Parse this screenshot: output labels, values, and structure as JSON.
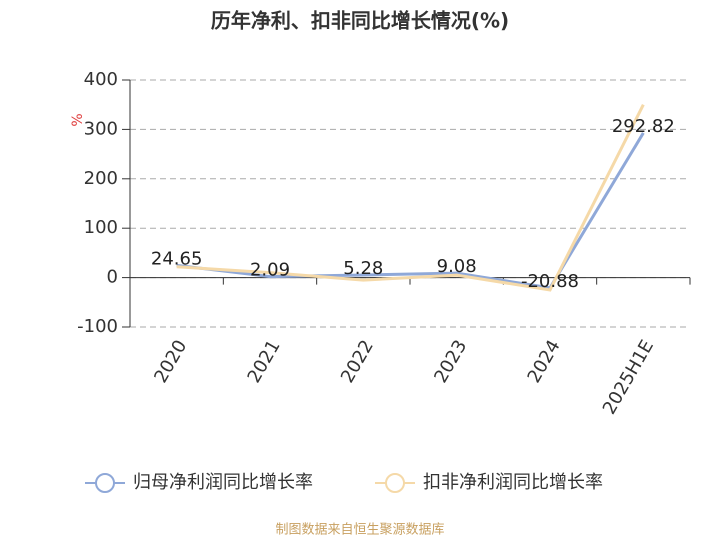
{
  "chart_data": {
    "type": "line",
    "title": "历年净利、扣非同比增长情况(%)",
    "y_label": "%",
    "categories": [
      "2020",
      "2021",
      "2022",
      "2023",
      "2024",
      "2025H1E"
    ],
    "series": [
      {
        "name": "归母净利润同比增长率",
        "color": "#8fa8d8",
        "values": [
          24.65,
          2.09,
          5.28,
          9.08,
          -20.88,
          292.82
        ]
      },
      {
        "name": "扣非净利润同比增长率",
        "color": "#f5d9a8",
        "values": [
          22,
          10,
          -5,
          5,
          -25,
          350
        ]
      }
    ],
    "ylim": [
      -100,
      400
    ],
    "yticks": [
      -100,
      0,
      100,
      200,
      300,
      400
    ],
    "grid": true,
    "footer": "制图数据来自恒生聚源数据库"
  }
}
